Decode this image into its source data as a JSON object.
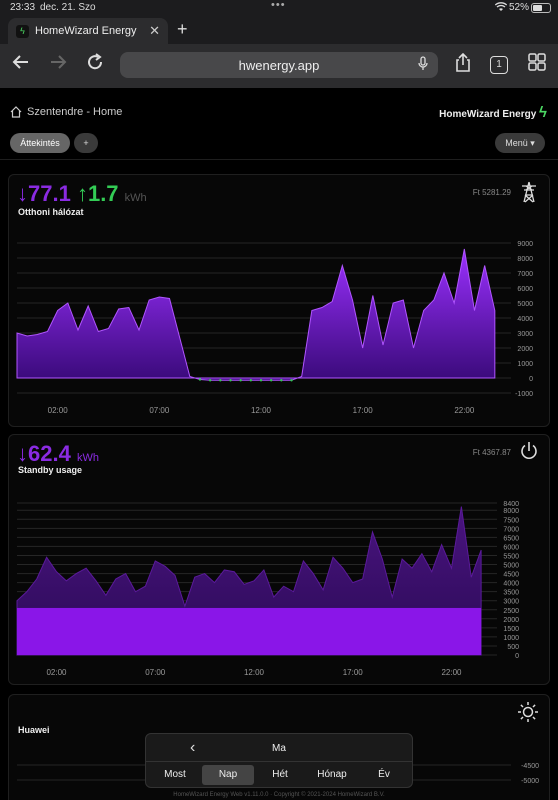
{
  "status": {
    "time": "23:33",
    "date": "dec. 21. Szo",
    "battery": "52%"
  },
  "browser": {
    "tab_title": "HomeWizard Energy",
    "url": "hwenergy.app",
    "tab_count": "1"
  },
  "app": {
    "location": "Szentendre - Home",
    "brand": "HomeWizard Energy",
    "overview_label": "Áttekintés",
    "add_label": "+",
    "menu_label": "Menü ▾"
  },
  "cards": {
    "grid": {
      "import_value": "77.1",
      "export_value": "1.7",
      "unit": "kWh",
      "label": "Otthoni hálózat",
      "cost": "Ft 5281.29"
    },
    "standby": {
      "value": "62.4",
      "unit": "kWh",
      "label": "Standby usage",
      "cost": "Ft 4367.87"
    },
    "solar": {
      "label": "Huawei"
    }
  },
  "period": {
    "current": "Ma",
    "tabs": [
      "Most",
      "Nap",
      "Hét",
      "Hónap",
      "Év"
    ],
    "active": 1
  },
  "footer": "HomeWizard Energy Web v1.11.0.0 · Copyright © 2021-2024 HomeWizard B.V.",
  "colors": {
    "accent_purple": "#8a2be2",
    "accent_green": "#33cc55",
    "card_bg": "#070707"
  },
  "chart_data": [
    {
      "type": "area",
      "name": "Otthoni hálózat",
      "x": [
        0,
        0.5,
        1,
        1.5,
        2,
        2.5,
        3,
        3.5,
        4,
        4.5,
        5,
        5.5,
        6,
        6.5,
        7,
        7.5,
        8,
        8.5,
        9,
        9.5,
        10,
        10.5,
        11,
        11.5,
        12,
        12.5,
        13,
        13.5,
        14,
        14.5,
        15,
        15.5,
        16,
        16.5,
        17,
        17.5,
        18,
        18.5,
        19,
        19.5,
        20,
        20.5,
        21,
        21.5,
        22,
        22.5,
        23,
        23.5
      ],
      "values": [
        3000,
        2800,
        2900,
        3100,
        4500,
        5000,
        3200,
        4800,
        3100,
        3300,
        4600,
        4700,
        3200,
        5200,
        5400,
        5300,
        2700,
        100,
        -100,
        -150,
        -150,
        -150,
        -150,
        -150,
        -150,
        -150,
        -150,
        -150,
        100,
        4500,
        4700,
        5100,
        7500,
        5200,
        2000,
        5500,
        2200,
        5000,
        5200,
        2000,
        4500,
        5200,
        7000,
        5000,
        8600,
        4500,
        7500,
        4500
      ],
      "xticks": [
        "02:00",
        "07:00",
        "12:00",
        "17:00",
        "22:00"
      ],
      "xtick_values": [
        2,
        7,
        12,
        17,
        22
      ],
      "yticks": [
        9000,
        8000,
        7000,
        6000,
        5000,
        4000,
        3000,
        2000,
        1000,
        0,
        -1000
      ],
      "ylim": [
        -1000,
        9000
      ]
    },
    {
      "type": "area",
      "name": "Standby usage",
      "x": [
        0,
        0.5,
        1,
        1.5,
        2,
        2.5,
        3,
        3.5,
        4,
        4.5,
        5,
        5.5,
        6,
        6.5,
        7,
        7.5,
        8,
        8.5,
        9,
        9.5,
        10,
        10.5,
        11,
        11.5,
        12,
        12.5,
        13,
        13.5,
        14,
        14.5,
        15,
        15.5,
        16,
        16.5,
        17,
        17.5,
        18,
        18.5,
        19,
        19.5,
        20,
        20.5,
        21,
        21.5,
        22,
        22.5,
        23,
        23.5
      ],
      "values": [
        3000,
        3500,
        4200,
        5400,
        4600,
        4100,
        4500,
        4800,
        4100,
        3300,
        4200,
        4500,
        3500,
        3800,
        5200,
        4900,
        4400,
        2700,
        4300,
        4500,
        4000,
        4700,
        4600,
        3900,
        4100,
        4700,
        3200,
        3800,
        3500,
        5200,
        4500,
        3600,
        5400,
        4800,
        4000,
        4200,
        6800,
        5300,
        3200,
        5300,
        4800,
        5600,
        4600,
        6100,
        4800,
        8200,
        4300,
        5800
      ],
      "baseline": 2600,
      "xticks": [
        "02:00",
        "07:00",
        "12:00",
        "17:00",
        "22:00"
      ],
      "xtick_values": [
        2,
        7,
        12,
        17,
        22
      ],
      "yticks": [
        8400,
        8000,
        7500,
        7000,
        6500,
        6000,
        5500,
        5000,
        4500,
        4000,
        3500,
        3000,
        2500,
        2000,
        1500,
        1000,
        500,
        0
      ],
      "ylim": [
        0,
        8400
      ]
    },
    {
      "type": "area",
      "name": "Huawei",
      "yticks": [
        -4500,
        -5000
      ]
    }
  ]
}
